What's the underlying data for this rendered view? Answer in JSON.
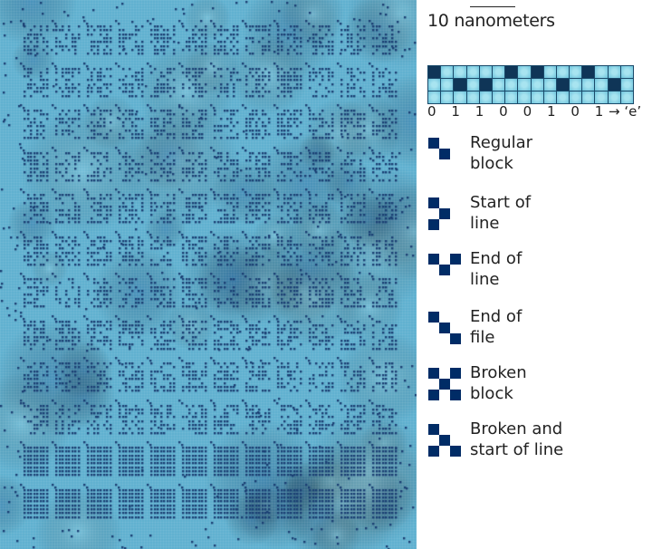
{
  "scale_bar": {
    "label": "10 nanometers"
  },
  "bit_strip": {
    "rows": [
      [
        1,
        0,
        0,
        0,
        0,
        0,
        1,
        0,
        1,
        0,
        0,
        0,
        1,
        0,
        0,
        0
      ],
      [
        0,
        0,
        1,
        0,
        1,
        0,
        0,
        0,
        0,
        0,
        1,
        0,
        0,
        0,
        1,
        0
      ],
      [
        0,
        0,
        0,
        0,
        0,
        0,
        0,
        0,
        0,
        0,
        0,
        0,
        0,
        0,
        0,
        0
      ]
    ],
    "bits": [
      "0",
      "1",
      "1",
      "0",
      "0",
      "1",
      "0",
      "1"
    ],
    "decoded": "→ ‘e’"
  },
  "legend": [
    {
      "label": "Regular\nblock",
      "pattern": [
        [
          0,
          0
        ],
        [
          1,
          1
        ]
      ]
    },
    {
      "label": "Start of\nline",
      "pattern": [
        [
          0,
          0
        ],
        [
          1,
          1
        ],
        [
          0,
          2
        ]
      ]
    },
    {
      "label": "End of\nline",
      "pattern": [
        [
          0,
          0
        ],
        [
          2,
          0
        ],
        [
          1,
          1
        ]
      ]
    },
    {
      "label": "End of\nfile",
      "pattern": [
        [
          0,
          0
        ],
        [
          1,
          1
        ],
        [
          2,
          2
        ]
      ]
    },
    {
      "label": "Broken\nblock",
      "pattern": [
        [
          0,
          0
        ],
        [
          2,
          0
        ],
        [
          1,
          1
        ],
        [
          0,
          2
        ],
        [
          2,
          2
        ]
      ]
    },
    {
      "label": "Broken and\nstart of line",
      "pattern": [
        [
          0,
          0
        ],
        [
          1,
          1
        ],
        [
          0,
          2
        ],
        [
          2,
          2
        ]
      ]
    }
  ],
  "colors": {
    "surface": "#5eb0d0",
    "atom": "#1b3f73",
    "legend_block": "#002c66"
  }
}
